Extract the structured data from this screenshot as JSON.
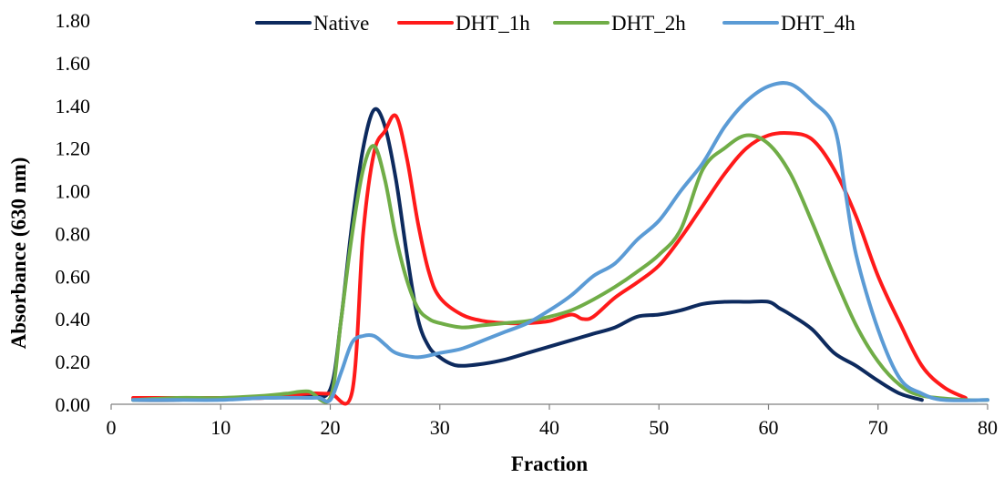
{
  "chart_data": {
    "type": "line",
    "title": "",
    "xlabel": "Fraction",
    "ylabel": "Absorbance (630 nm)",
    "xlim": [
      0,
      80
    ],
    "ylim": [
      0,
      1.8
    ],
    "x_ticks": [
      "0",
      "10",
      "20",
      "30",
      "40",
      "50",
      "60",
      "70",
      "80"
    ],
    "y_ticks": [
      "0.00",
      "0.20",
      "0.40",
      "0.60",
      "0.80",
      "1.00",
      "1.20",
      "1.40",
      "1.60",
      "1.80"
    ],
    "grid": false,
    "legend_position": "top",
    "series": [
      {
        "name": "Native",
        "color": "#0d2a5e",
        "points": [
          [
            2,
            0.02
          ],
          [
            6,
            0.02
          ],
          [
            10,
            0.03
          ],
          [
            14,
            0.03
          ],
          [
            18,
            0.04
          ],
          [
            20,
            0.07
          ],
          [
            21,
            0.4
          ],
          [
            22,
            0.85
          ],
          [
            23,
            1.2
          ],
          [
            24,
            1.38
          ],
          [
            25,
            1.3
          ],
          [
            26,
            1.05
          ],
          [
            27,
            0.7
          ],
          [
            28,
            0.4
          ],
          [
            29,
            0.27
          ],
          [
            30,
            0.22
          ],
          [
            31,
            0.19
          ],
          [
            32,
            0.18
          ],
          [
            34,
            0.19
          ],
          [
            36,
            0.21
          ],
          [
            38,
            0.24
          ],
          [
            40,
            0.27
          ],
          [
            42,
            0.3
          ],
          [
            44,
            0.33
          ],
          [
            46,
            0.36
          ],
          [
            48,
            0.41
          ],
          [
            50,
            0.42
          ],
          [
            52,
            0.44
          ],
          [
            54,
            0.47
          ],
          [
            56,
            0.48
          ],
          [
            58,
            0.48
          ],
          [
            60,
            0.48
          ],
          [
            61,
            0.45
          ],
          [
            62,
            0.42
          ],
          [
            64,
            0.35
          ],
          [
            66,
            0.24
          ],
          [
            68,
            0.18
          ],
          [
            70,
            0.11
          ],
          [
            72,
            0.05
          ],
          [
            74,
            0.02
          ]
        ]
      },
      {
        "name": "DHT_1h",
        "color": "#ff1a1a",
        "points": [
          [
            2,
            0.03
          ],
          [
            6,
            0.03
          ],
          [
            10,
            0.03
          ],
          [
            14,
            0.03
          ],
          [
            18,
            0.05
          ],
          [
            20,
            0.05
          ],
          [
            22,
            0.06
          ],
          [
            23,
            0.8
          ],
          [
            24,
            1.18
          ],
          [
            25,
            1.28
          ],
          [
            26,
            1.35
          ],
          [
            27,
            1.15
          ],
          [
            28,
            0.85
          ],
          [
            29,
            0.62
          ],
          [
            30,
            0.5
          ],
          [
            32,
            0.42
          ],
          [
            34,
            0.39
          ],
          [
            36,
            0.38
          ],
          [
            38,
            0.38
          ],
          [
            40,
            0.39
          ],
          [
            42,
            0.42
          ],
          [
            43,
            0.4
          ],
          [
            44,
            0.41
          ],
          [
            46,
            0.5
          ],
          [
            48,
            0.57
          ],
          [
            50,
            0.65
          ],
          [
            52,
            0.78
          ],
          [
            54,
            0.93
          ],
          [
            56,
            1.08
          ],
          [
            58,
            1.2
          ],
          [
            60,
            1.26
          ],
          [
            62,
            1.27
          ],
          [
            64,
            1.24
          ],
          [
            66,
            1.1
          ],
          [
            68,
            0.88
          ],
          [
            70,
            0.6
          ],
          [
            72,
            0.38
          ],
          [
            74,
            0.18
          ],
          [
            76,
            0.08
          ],
          [
            78,
            0.03
          ]
        ]
      },
      {
        "name": "DHT_2h",
        "color": "#70ad47",
        "points": [
          [
            2,
            0.02
          ],
          [
            6,
            0.03
          ],
          [
            10,
            0.03
          ],
          [
            14,
            0.04
          ],
          [
            16,
            0.05
          ],
          [
            18,
            0.06
          ],
          [
            20,
            0.03
          ],
          [
            21,
            0.4
          ],
          [
            22,
            0.8
          ],
          [
            23,
            1.1
          ],
          [
            24,
            1.21
          ],
          [
            25,
            1.05
          ],
          [
            26,
            0.78
          ],
          [
            27,
            0.58
          ],
          [
            28,
            0.45
          ],
          [
            29,
            0.4
          ],
          [
            30,
            0.38
          ],
          [
            32,
            0.36
          ],
          [
            34,
            0.37
          ],
          [
            36,
            0.38
          ],
          [
            38,
            0.39
          ],
          [
            40,
            0.41
          ],
          [
            42,
            0.44
          ],
          [
            44,
            0.49
          ],
          [
            46,
            0.55
          ],
          [
            48,
            0.62
          ],
          [
            50,
            0.7
          ],
          [
            52,
            0.82
          ],
          [
            54,
            1.1
          ],
          [
            56,
            1.2
          ],
          [
            58,
            1.26
          ],
          [
            60,
            1.22
          ],
          [
            62,
            1.08
          ],
          [
            64,
            0.85
          ],
          [
            66,
            0.6
          ],
          [
            68,
            0.37
          ],
          [
            70,
            0.2
          ],
          [
            72,
            0.09
          ],
          [
            74,
            0.04
          ],
          [
            78,
            0.02
          ],
          [
            80,
            0.02
          ]
        ]
      },
      {
        "name": "DHT_4h",
        "color": "#5b9bd5",
        "points": [
          [
            2,
            0.02
          ],
          [
            6,
            0.02
          ],
          [
            10,
            0.02
          ],
          [
            14,
            0.03
          ],
          [
            18,
            0.03
          ],
          [
            19,
            0.03
          ],
          [
            20,
            0.02
          ],
          [
            21,
            0.15
          ],
          [
            22,
            0.29
          ],
          [
            23,
            0.32
          ],
          [
            24,
            0.32
          ],
          [
            25,
            0.28
          ],
          [
            26,
            0.24
          ],
          [
            28,
            0.22
          ],
          [
            30,
            0.24
          ],
          [
            32,
            0.26
          ],
          [
            34,
            0.3
          ],
          [
            36,
            0.34
          ],
          [
            38,
            0.38
          ],
          [
            40,
            0.44
          ],
          [
            42,
            0.51
          ],
          [
            44,
            0.6
          ],
          [
            46,
            0.66
          ],
          [
            48,
            0.77
          ],
          [
            50,
            0.86
          ],
          [
            52,
            1.0
          ],
          [
            54,
            1.13
          ],
          [
            56,
            1.3
          ],
          [
            58,
            1.42
          ],
          [
            60,
            1.49
          ],
          [
            62,
            1.5
          ],
          [
            64,
            1.42
          ],
          [
            66,
            1.3
          ],
          [
            67,
            1.0
          ],
          [
            68,
            0.7
          ],
          [
            70,
            0.35
          ],
          [
            72,
            0.12
          ],
          [
            74,
            0.05
          ],
          [
            76,
            0.02
          ],
          [
            80,
            0.02
          ]
        ]
      }
    ]
  }
}
